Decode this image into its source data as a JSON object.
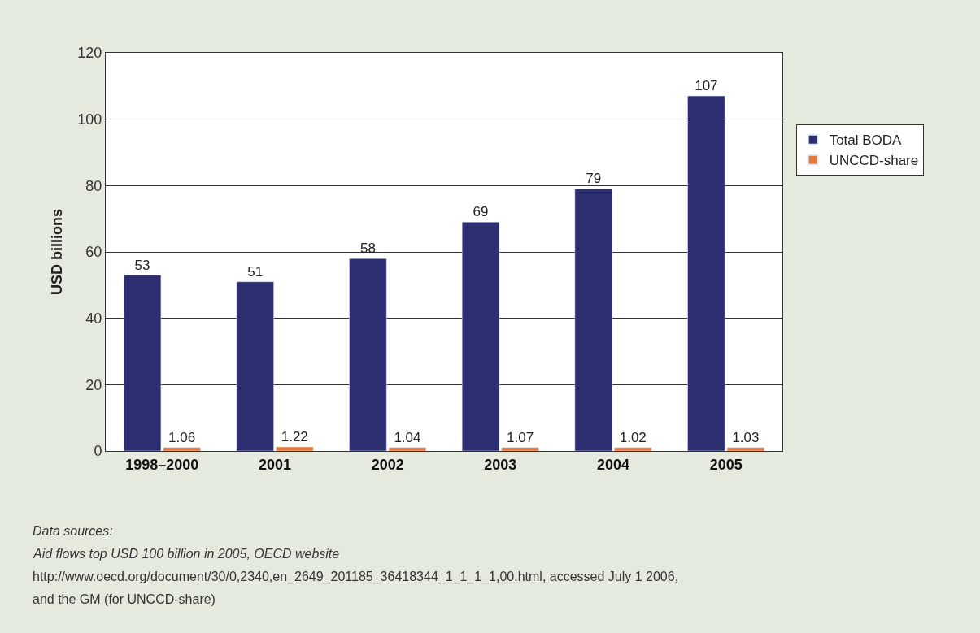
{
  "chart_data": {
    "type": "bar",
    "ylabel": "USD billions",
    "categories": [
      "1998–2000",
      "2001",
      "2002",
      "2003",
      "2004",
      "2005"
    ],
    "series": [
      {
        "name": "Total BODA",
        "color": "#2e2f72",
        "values": [
          53,
          51,
          58,
          69,
          79,
          107
        ]
      },
      {
        "name": "UNCCD-share",
        "color": "#e2783a",
        "values": [
          1.06,
          1.22,
          1.04,
          1.07,
          1.02,
          1.03
        ]
      }
    ],
    "data_labels": true,
    "ylim": [
      0,
      120
    ],
    "yticks": [
      0,
      20,
      40,
      60,
      80,
      100,
      120
    ],
    "grid": "y",
    "legend": "right",
    "annotations": [
      "Data sources:",
      "Aid flows top USD 100 billion in 2005, OECD website",
      "http://www.oecd.org/document/30/0,2340,en_2649_201185_36418344_1_1_1_1,00.html, accessed July 1 2006,",
      "and the GM (for UNCCD-share)"
    ]
  }
}
